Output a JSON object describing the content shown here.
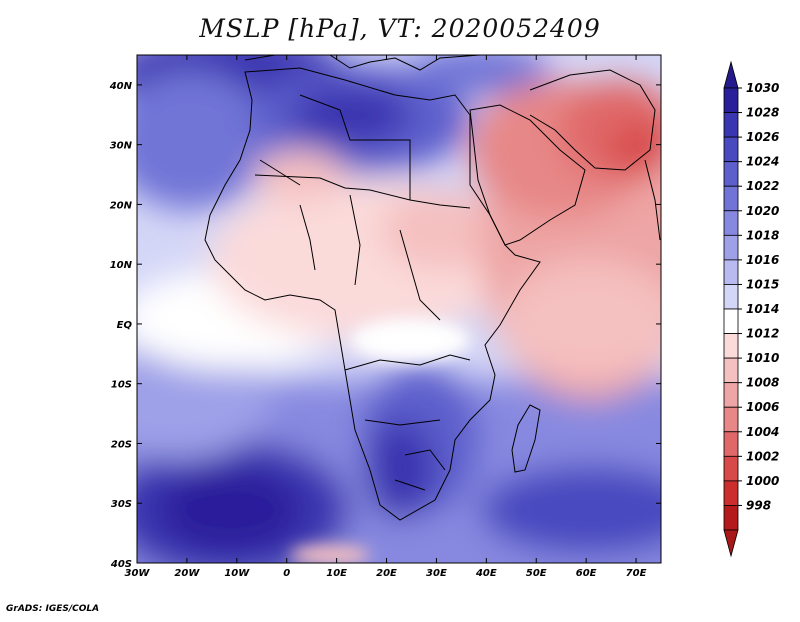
{
  "title": "MSLP [hPa], VT: 2020052409",
  "footer": "GrADS: IGES/COLA",
  "map": {
    "lon_range": [
      -30,
      75
    ],
    "lat_range": [
      -40,
      45
    ],
    "x_ticks": [
      {
        "lon": -30,
        "label": "30W"
      },
      {
        "lon": -20,
        "label": "20W"
      },
      {
        "lon": -10,
        "label": "10W"
      },
      {
        "lon": 0,
        "label": "0"
      },
      {
        "lon": 10,
        "label": "10E"
      },
      {
        "lon": 20,
        "label": "20E"
      },
      {
        "lon": 30,
        "label": "30E"
      },
      {
        "lon": 40,
        "label": "40E"
      },
      {
        "lon": 50,
        "label": "50E"
      },
      {
        "lon": 60,
        "label": "60E"
      },
      {
        "lon": 70,
        "label": "70E"
      }
    ],
    "y_ticks": [
      {
        "lat": 40,
        "label": "40N"
      },
      {
        "lat": 30,
        "label": "30N"
      },
      {
        "lat": 20,
        "label": "20N"
      },
      {
        "lat": 10,
        "label": "10N"
      },
      {
        "lat": 0,
        "label": "EQ"
      },
      {
        "lat": -10,
        "label": "10S"
      },
      {
        "lat": -20,
        "label": "20S"
      },
      {
        "lat": -30,
        "label": "30S"
      },
      {
        "lat": -40,
        "label": "40S"
      }
    ]
  },
  "colorbar": {
    "levels": [
      "1030",
      "1028",
      "1026",
      "1024",
      "1022",
      "1020",
      "1018",
      "1016",
      "1015",
      "1014",
      "1012",
      "1010",
      "1008",
      "1006",
      "1004",
      "1002",
      "1000",
      "998"
    ],
    "colors": [
      "#2a1f9a",
      "#3a35b0",
      "#4a4ac0",
      "#5d5fcc",
      "#7174d6",
      "#8789e0",
      "#9ea0e8",
      "#b8baf0",
      "#d4d6f7",
      "#ffffff",
      "#fbdada",
      "#f5c0c0",
      "#eea5a5",
      "#e78787",
      "#e06868",
      "#d84a4a",
      "#cc2e2e",
      "#b41a1a"
    ],
    "top_color": "#241a8c",
    "bottom_color": "#a81818"
  }
}
